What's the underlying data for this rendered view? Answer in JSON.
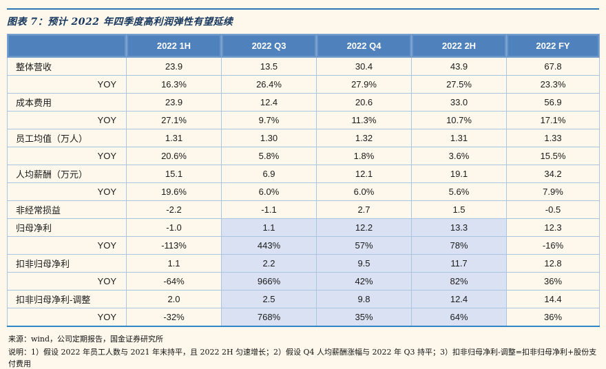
{
  "title": "图表 7：预计 2022 年四季度高利润弹性有望延续",
  "colors": {
    "page_background": "#FDF8EB",
    "header_background": "#4F81BD",
    "header_text": "#FFFFFF",
    "highlight_cell": "#D9E1F2",
    "grid_border": "#A9C5E2",
    "accent_rule": "#2E75B6",
    "table_bottom_rule": "#2E86C8",
    "title_text": "#16365D"
  },
  "table": {
    "columns": [
      "",
      "2022 1H",
      "2022 Q3",
      "2022 Q4",
      "2022 2H",
      "2022 FY"
    ],
    "highlight_value_columns": [
      1,
      2,
      3
    ],
    "rows": [
      {
        "label": "整体营收",
        "type": "metric",
        "highlight": false,
        "values": [
          "23.9",
          "13.5",
          "30.4",
          "43.9",
          "67.8"
        ]
      },
      {
        "label": "YOY",
        "type": "yoy",
        "highlight": false,
        "values": [
          "16.3%",
          "26.4%",
          "27.9%",
          "27.5%",
          "23.3%"
        ]
      },
      {
        "label": "成本费用",
        "type": "metric",
        "highlight": false,
        "values": [
          "23.9",
          "12.4",
          "20.6",
          "33.0",
          "56.9"
        ]
      },
      {
        "label": "YOY",
        "type": "yoy",
        "highlight": false,
        "values": [
          "27.1%",
          "9.7%",
          "11.3%",
          "10.7%",
          "17.1%"
        ]
      },
      {
        "label": "员工均值（万人）",
        "type": "metric",
        "highlight": false,
        "values": [
          "1.31",
          "1.30",
          "1.32",
          "1.31",
          "1.33"
        ]
      },
      {
        "label": "YOY",
        "type": "yoy",
        "highlight": false,
        "values": [
          "20.6%",
          "5.8%",
          "1.8%",
          "3.6%",
          "15.5%"
        ]
      },
      {
        "label": "人均薪酬（万元）",
        "type": "metric",
        "highlight": false,
        "values": [
          "15.1",
          "6.9",
          "12.1",
          "19.1",
          "34.2"
        ]
      },
      {
        "label": "YOY",
        "type": "yoy",
        "highlight": false,
        "values": [
          "19.6%",
          "6.0%",
          "6.0%",
          "5.6%",
          "7.9%"
        ]
      },
      {
        "label": "非经常损益",
        "type": "metric",
        "highlight": false,
        "values": [
          "-2.2",
          "-1.1",
          "2.7",
          "1.5",
          "-0.5"
        ]
      },
      {
        "label": "归母净利",
        "type": "metric",
        "highlight": true,
        "values": [
          "-1.0",
          "1.1",
          "12.2",
          "13.3",
          "12.3"
        ]
      },
      {
        "label": "YOY",
        "type": "yoy",
        "highlight": true,
        "values": [
          "-113%",
          "443%",
          "57%",
          "78%",
          "-16%"
        ]
      },
      {
        "label": "扣非归母净利",
        "type": "metric",
        "highlight": true,
        "values": [
          "1.1",
          "2.2",
          "9.5",
          "11.7",
          "12.8"
        ]
      },
      {
        "label": "YOY",
        "type": "yoy",
        "highlight": true,
        "values": [
          "-64%",
          "966%",
          "42%",
          "82%",
          "36%"
        ]
      },
      {
        "label": "扣非归母净利-调整",
        "type": "metric",
        "highlight": true,
        "values": [
          "2.0",
          "2.5",
          "9.8",
          "12.4",
          "14.4"
        ]
      },
      {
        "label": "YOY",
        "type": "yoy",
        "highlight": true,
        "values": [
          "-32%",
          "768%",
          "35%",
          "64%",
          "36%"
        ]
      }
    ]
  },
  "footer": {
    "source": "来源：wind，公司定期报告，国金证券研究所",
    "note": "说明：1）假设 2022 年员工人数与 2021 年末持平，且 2022 2H 匀速增长；2）假设 Q4 人均薪酬涨幅与 2022 年 Q3 持平；3）扣非归母净利-调整=扣非归母净利+股份支付费用"
  }
}
